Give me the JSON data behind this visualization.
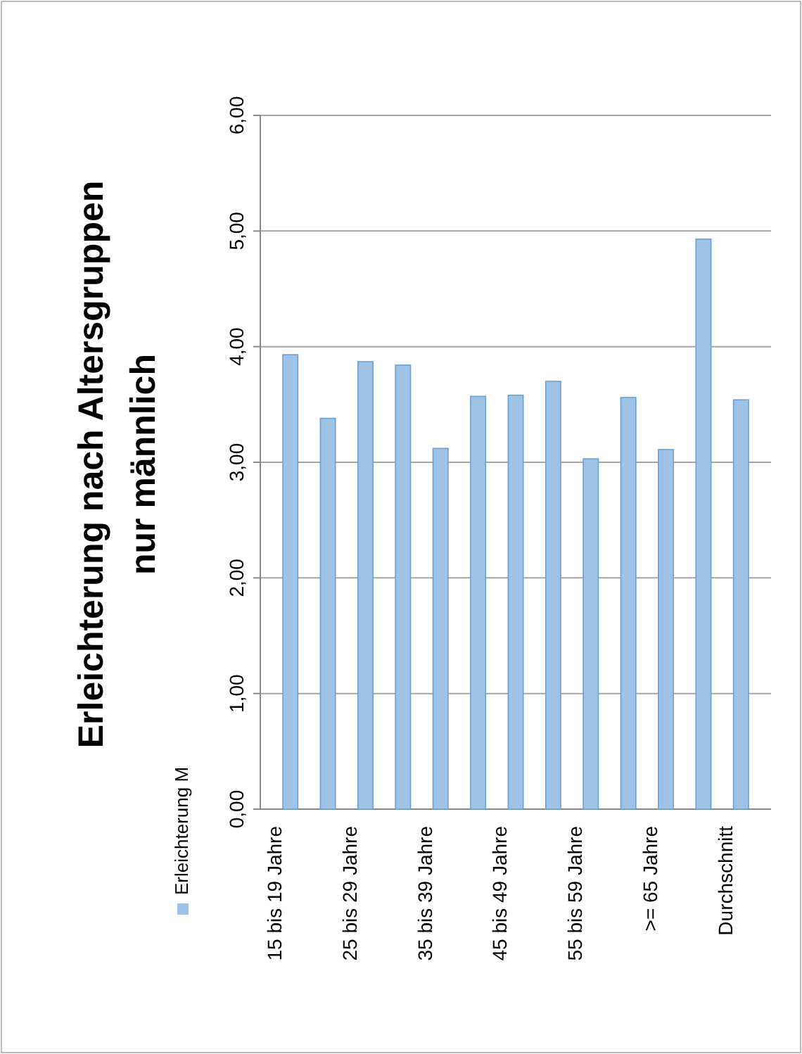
{
  "chart_data": {
    "type": "bar",
    "title": "Erleichterung nach Altersgruppen nur männlich",
    "categories": [
      "15 bis 19 Jahre",
      null,
      "25 bis 29 Jahre",
      null,
      "35 bis 39 Jahre",
      null,
      "45 bis 49 Jahre",
      null,
      "55 bis 59 Jahre",
      null,
      ">= 65 Jahre",
      null,
      "Durchschnitt"
    ],
    "series": [
      {
        "name": "Erleichterung M",
        "color": "#9dc3e6",
        "values": [
          3.93,
          3.38,
          3.87,
          3.84,
          3.12,
          3.57,
          3.58,
          3.7,
          3.03,
          3.56,
          3.11,
          4.93,
          3.54
        ]
      }
    ],
    "ylim": [
      0,
      6
    ],
    "yticks": [
      {
        "value": 0,
        "label": "0,00"
      },
      {
        "value": 1,
        "label": "1,00"
      },
      {
        "value": 2,
        "label": "2,00"
      },
      {
        "value": 3,
        "label": "3,00"
      },
      {
        "value": 4,
        "label": "4,00"
      },
      {
        "value": 5,
        "label": "5,00"
      },
      {
        "value": 6,
        "label": "6,00"
      }
    ],
    "grid": "y",
    "legend": "left"
  }
}
